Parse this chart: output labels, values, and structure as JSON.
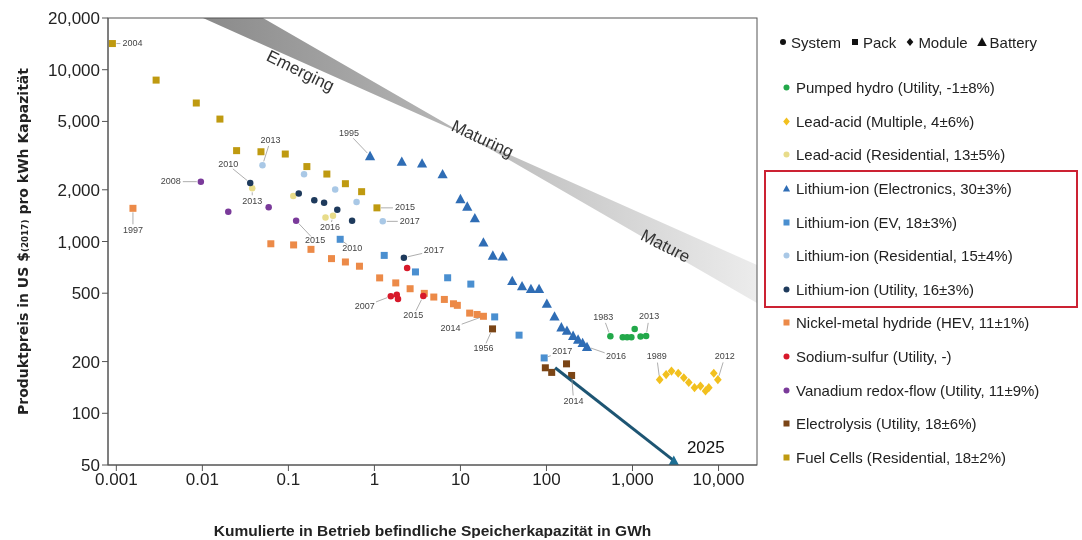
{
  "chart_data": {
    "type": "scatter",
    "xlabel": "Kumulierte in Betrieb befindliche Speicherkapazität in GWh",
    "ylabel": "Produktpreis in US $₍₂₀₁₇₎ pro kWh Kapazität",
    "log": "xy",
    "grid": false,
    "legend": "right",
    "xlim": [
      0.0008,
      28000
    ],
    "ylim": [
      50,
      20000
    ],
    "xticks": [
      0.001,
      0.01,
      0.1,
      1,
      10,
      100,
      {
        "value": 1000,
        "label": "1,000"
      },
      {
        "value": 10000,
        "label": "10,000"
      }
    ],
    "yticks": [
      50,
      100,
      200,
      500,
      {
        "value": 1000,
        "label": "1,000"
      },
      {
        "value": 2000,
        "label": "2,000"
      },
      {
        "value": 5000,
        "label": "5,000"
      },
      {
        "value": 10000,
        "label": "10,000"
      },
      {
        "value": 20000,
        "label": "20,000"
      }
    ],
    "series": [
      {
        "name": "Pumped hydro (Utility, -1±8%)",
        "color": "#22a84a",
        "marker": "circle",
        "x": [
          553,
          770,
          865,
          970,
          1060,
          1240,
          1440
        ],
        "values": [
          281,
          277,
          277,
          277,
          310,
          280,
          282
        ]
      },
      {
        "name": "Lead-acid (Multiple, 4±6%)",
        "color": "#f2c01e",
        "marker": "diamond",
        "x": [
          2070,
          2460,
          2840,
          3400,
          3950,
          4510,
          5260,
          6170,
          7060,
          7710,
          8810,
          9820
        ],
        "values": [
          157,
          168,
          176,
          171,
          161,
          151,
          141,
          144,
          135,
          141,
          171,
          157
        ]
      },
      {
        "name": "Lead-acid (Residential, 13±5%)",
        "color": "#e8dc8a",
        "marker": "circle",
        "x": [
          0.038,
          0.114,
          0.27,
          0.33
        ],
        "values": [
          2040,
          1840,
          1380,
          1410
        ]
      },
      {
        "name": "Lithium-ion (Electronics, 30±3%)",
        "color": "#2f6db5",
        "marker": "triangle",
        "x": [
          0.89,
          2.08,
          3.58,
          6.2,
          10,
          12,
          14.7,
          18.5,
          23.8,
          31,
          40,
          52,
          66,
          82,
          101,
          124,
          149,
          173,
          204,
          233,
          263,
          296
        ],
        "values": [
          3150,
          2920,
          2850,
          2470,
          1770,
          1600,
          1370,
          990,
          830,
          820,
          590,
          550,
          530,
          530,
          435,
          367,
          317,
          303,
          283,
          269,
          257,
          244
        ]
      },
      {
        "name": "Lithium-ion (EV, 18±3%)",
        "color": "#4a8fd0",
        "marker": "square",
        "x": [
          0.4,
          1.3,
          3.0,
          7.1,
          13.2,
          25,
          48,
          94
        ],
        "values": [
          1030,
          830,
          665,
          615,
          565,
          364,
          285,
          210
        ]
      },
      {
        "name": "Lithium-ion (Residential, 15±4%)",
        "color": "#a9c8e6",
        "marker": "circle",
        "x": [
          0.05,
          0.152,
          0.35,
          0.62,
          1.25
        ],
        "values": [
          2780,
          2460,
          2010,
          1700,
          1310
        ]
      },
      {
        "name": "Lithium-ion (Utility, 16±3%)",
        "color": "#1e3a5c",
        "marker": "circle",
        "x": [
          0.036,
          0.132,
          0.2,
          0.26,
          0.37,
          0.55,
          2.2
        ],
        "values": [
          2190,
          1900,
          1740,
          1680,
          1530,
          1320,
          805
        ]
      },
      {
        "name": "Nickel-metal hydride (HEV, 11±1%)",
        "color": "#ec8a48",
        "marker": "square",
        "x": [
          0.00156,
          0.0625,
          0.115,
          0.183,
          0.317,
          0.46,
          0.67,
          1.15,
          1.77,
          2.6,
          3.8,
          4.9,
          6.5,
          8.3,
          9.2,
          12.8,
          15.6,
          18.5
        ],
        "values": [
          1560,
          970,
          955,
          900,
          795,
          760,
          718,
          614,
          574,
          531,
          499,
          475,
          460,
          434,
          425,
          383,
          376,
          367
        ]
      },
      {
        "name": "Sodium-sulfur (Utility, -)",
        "color": "#d7192a",
        "marker": "circle",
        "x": [
          1.55,
          1.82,
          1.88,
          2.4,
          3.7
        ],
        "values": [
          480,
          490,
          463,
          700,
          481
        ]
      },
      {
        "name": "Vanadium redox-flow (Utility, 11±9%)",
        "color": "#7a3a9a",
        "marker": "circle",
        "x": [
          0.0096,
          0.02,
          0.059,
          0.123
        ],
        "values": [
          2230,
          1490,
          1580,
          1320
        ]
      },
      {
        "name": "Electrolysis (Utility, 18±6%)",
        "color": "#7b4516",
        "marker": "square",
        "x": [
          23.6,
          97,
          115,
          171,
          196
        ],
        "values": [
          310,
          184,
          173,
          194,
          166
        ]
      },
      {
        "name": "Fuel Cells (Residential, 18±2%)",
        "color": "#bf9a10",
        "marker": "square",
        "x": [
          0.0009,
          0.0029,
          0.0085,
          0.016,
          0.025,
          0.048,
          0.092,
          0.164,
          0.28,
          0.46,
          0.71,
          1.07
        ],
        "values": [
          14200,
          8700,
          6400,
          5160,
          3380,
          3330,
          3230,
          2730,
          2470,
          2170,
          1950,
          1570
        ]
      },
      {
        "type": "line",
        "color": "#1d5573",
        "marker": "none",
        "x": [
          126,
          3020
        ],
        "values": [
          184,
          53
        ]
      },
      {
        "color": "#1d6f94",
        "marker": "triangle",
        "x": [
          3020
        ],
        "values": [
          53
        ]
      }
    ],
    "annotations": [
      "Emerging",
      "Maturing",
      "Mature",
      "System",
      "Pack",
      "Module",
      "Battery",
      {
        "text": "2004",
        "x": 0.0009,
        "y": 14200
      },
      {
        "text": "2013",
        "x": 0.05,
        "y": 2780
      },
      {
        "text": "2010",
        "x": 0.036,
        "y": 2190
      },
      {
        "text": "2008",
        "x": 0.0096,
        "y": 2230
      },
      {
        "text": "2013",
        "x": 0.038,
        "y": 2040
      },
      {
        "text": "1997",
        "x": 0.00156,
        "y": 1560
      },
      {
        "text": "2015",
        "x": 0.123,
        "y": 1320
      },
      {
        "text": "2016",
        "x": 0.33,
        "y": 1410
      },
      {
        "text": "2010",
        "x": 0.4,
        "y": 1030
      },
      {
        "text": "2015",
        "x": 1.07,
        "y": 1570
      },
      {
        "text": "2017",
        "x": 1.25,
        "y": 1310
      },
      {
        "text": "2017",
        "x": 2.2,
        "y": 805
      },
      {
        "text": "1995",
        "x": 0.89,
        "y": 3150
      },
      {
        "text": "2007",
        "x": 1.55,
        "y": 480
      },
      {
        "text": "2015",
        "x": 3.7,
        "y": 481
      },
      {
        "text": "2014",
        "x": 18.5,
        "y": 367
      },
      {
        "text": "1956",
        "x": 23.6,
        "y": 310
      },
      {
        "text": "2017",
        "x": 94,
        "y": 210
      },
      {
        "text": "2016",
        "x": 296,
        "y": 244
      },
      {
        "text": "2014",
        "x": 196,
        "y": 166
      },
      {
        "text": "1983",
        "x": 553,
        "y": 281
      },
      {
        "text": "2013",
        "x": 1440,
        "y": 282
      },
      {
        "text": "1989",
        "x": 2070,
        "y": 157
      },
      {
        "text": "2012",
        "x": 9820,
        "y": 157
      },
      {
        "text": "2025",
        "x": 3020,
        "y": 53
      }
    ]
  }
}
